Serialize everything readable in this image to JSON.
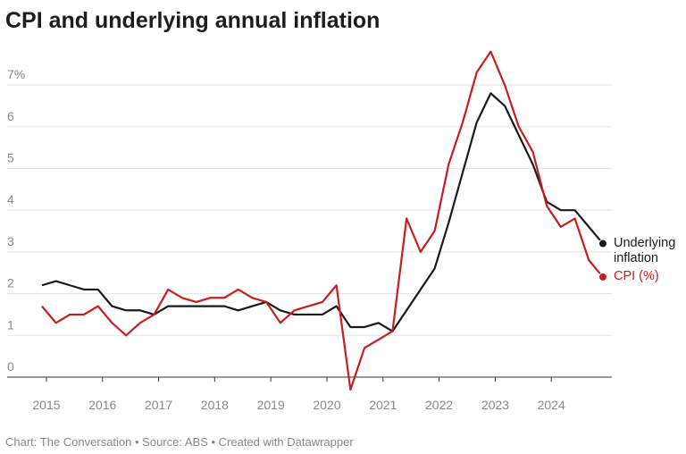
{
  "chart_data": {
    "type": "line",
    "title": "CPI and underlying annual inflation",
    "source": "Chart: The Conversation • Source: ABS • Created with Datawrapper",
    "x": [
      2014.92,
      2015.17,
      2015.42,
      2015.67,
      2015.92,
      2016.17,
      2016.42,
      2016.67,
      2016.92,
      2017.17,
      2017.42,
      2017.67,
      2017.92,
      2018.17,
      2018.42,
      2018.67,
      2018.92,
      2019.17,
      2019.42,
      2019.67,
      2019.92,
      2020.17,
      2020.42,
      2020.67,
      2020.92,
      2021.17,
      2021.42,
      2021.67,
      2021.92,
      2022.17,
      2022.42,
      2022.67,
      2022.92,
      2023.17,
      2023.42,
      2023.67,
      2023.92,
      2024.17,
      2024.42,
      2024.67,
      2024.92
    ],
    "series": [
      {
        "name": "Underlying inflation",
        "color": "#1a1a1a",
        "values": [
          2.2,
          2.3,
          2.2,
          2.1,
          2.1,
          1.7,
          1.6,
          1.6,
          1.5,
          1.7,
          1.7,
          1.7,
          1.7,
          1.7,
          1.6,
          1.7,
          1.8,
          1.6,
          1.5,
          1.5,
          1.5,
          1.7,
          1.2,
          1.2,
          1.3,
          1.1,
          1.6,
          2.1,
          2.6,
          3.7,
          4.9,
          6.1,
          6.8,
          6.5,
          5.8,
          5.1,
          4.2,
          4.0,
          4.0,
          3.6,
          3.2
        ]
      },
      {
        "name": "CPI (%)",
        "color": "#c71e1d",
        "values": [
          1.7,
          1.3,
          1.5,
          1.5,
          1.7,
          1.3,
          1.0,
          1.3,
          1.5,
          2.1,
          1.9,
          1.8,
          1.9,
          1.9,
          2.1,
          1.9,
          1.8,
          1.3,
          1.6,
          1.7,
          1.8,
          2.2,
          -0.3,
          0.7,
          0.9,
          1.1,
          3.8,
          3.0,
          3.5,
          5.1,
          6.1,
          7.3,
          7.8,
          7.0,
          6.0,
          5.4,
          4.1,
          3.6,
          3.8,
          2.8,
          2.4
        ]
      }
    ],
    "xlim": [
      2014.73,
      2025.0
    ],
    "xticks": [
      2015,
      2016,
      2017,
      2018,
      2019,
      2020,
      2021,
      2022,
      2023,
      2024
    ],
    "ylim": [
      -0.4,
      7.9
    ],
    "yticks": [
      0,
      1,
      2,
      3,
      4,
      5,
      6,
      {
        "value": 7,
        "label": "7%"
      }
    ],
    "grid": true
  }
}
